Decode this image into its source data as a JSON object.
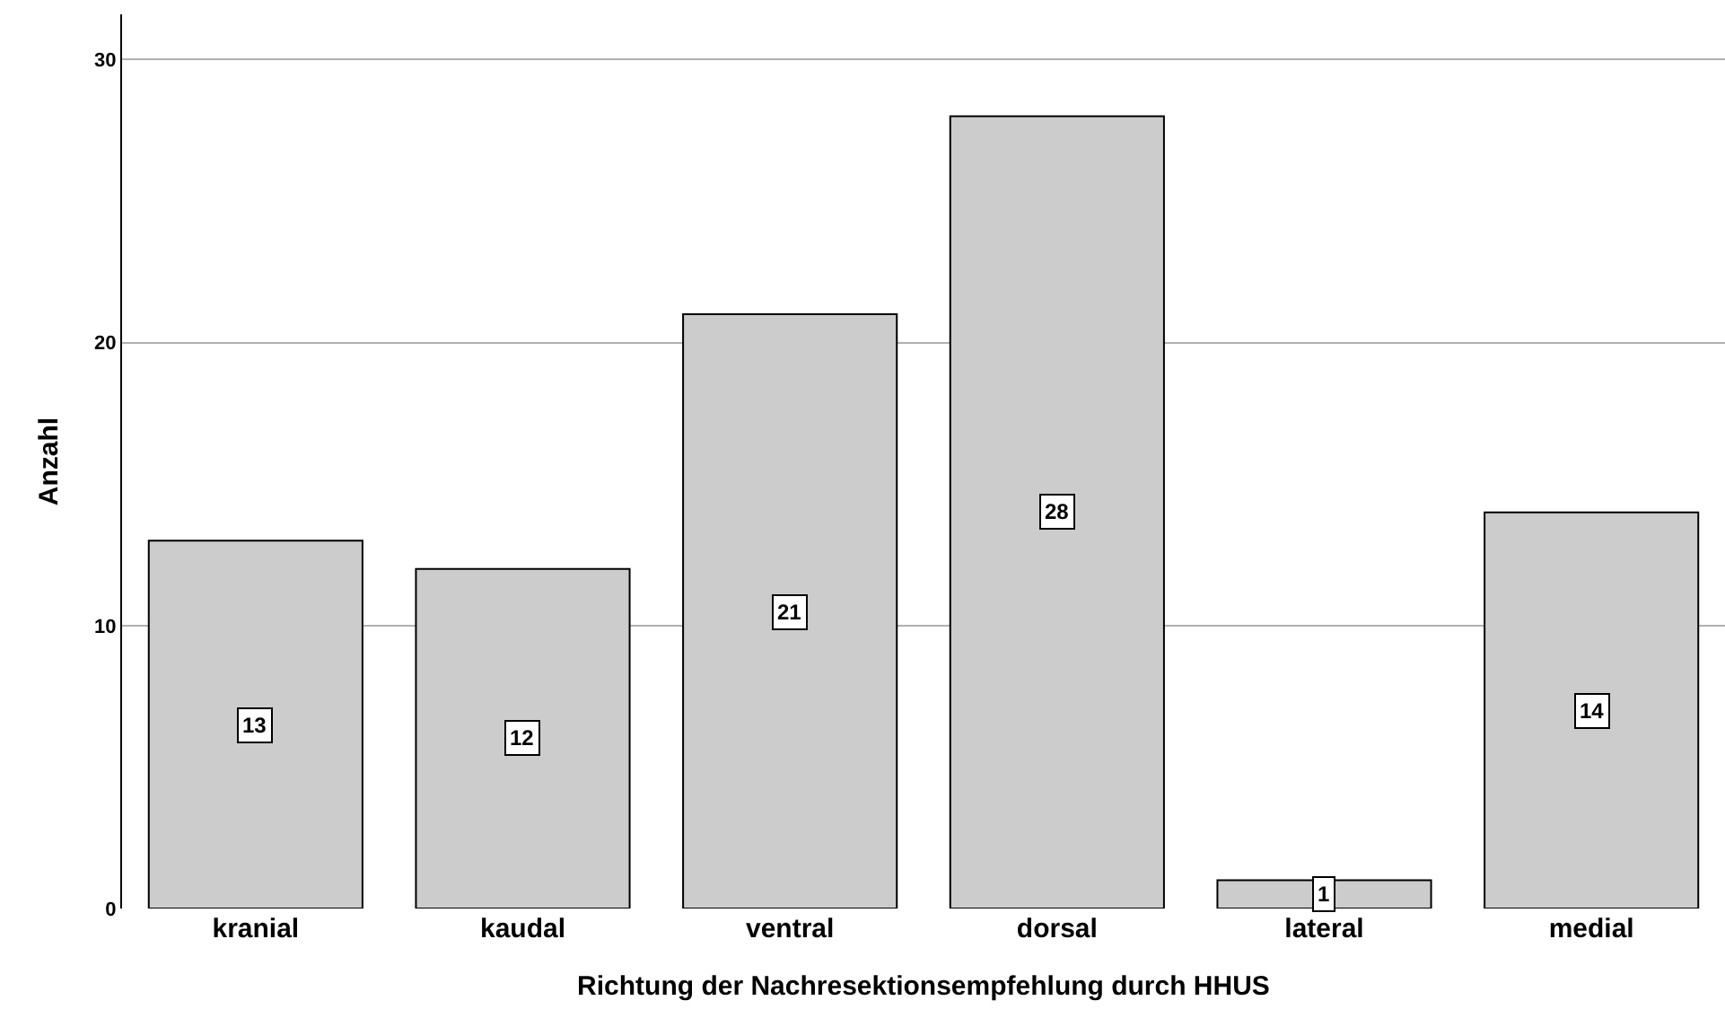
{
  "chart_data": {
    "type": "bar",
    "xlabel": "Richtung der Nachresektionsempfehlung durch HHUS",
    "ylabel": "Anzahl",
    "categories": [
      "kranial",
      "kaudal",
      "ventral",
      "dorsal",
      "lateral",
      "medial"
    ],
    "values": [
      13,
      12,
      21,
      28,
      1,
      14
    ],
    "color": "#cccccc",
    "ylim": [
      0,
      31.6
    ],
    "yticks": [
      0,
      10,
      20,
      30
    ],
    "grid": "y",
    "data_labels": true,
    "legend": false
  }
}
